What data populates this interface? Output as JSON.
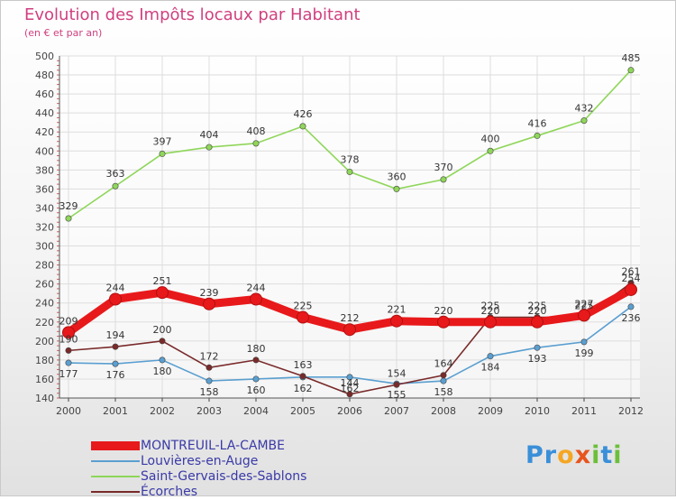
{
  "header": {
    "title": "Evolution des Impôts locaux par Habitant",
    "subtitle": "(en € et par an)"
  },
  "brand": {
    "chars": [
      {
        "ch": "P",
        "color": "#3a8fd8"
      },
      {
        "ch": "r",
        "color": "#3a8fd8"
      },
      {
        "ch": "o",
        "color": "#f5a623"
      },
      {
        "ch": "x",
        "color": "#e8541e"
      },
      {
        "ch": "i",
        "color": "#6cbf3a"
      },
      {
        "ch": "t",
        "color": "#3a8fd8"
      },
      {
        "ch": "i",
        "color": "#6cbf3a"
      }
    ]
  },
  "chart_data": {
    "type": "line",
    "title": "Evolution des Impôts locaux par Habitant",
    "subtitle": "(en € et par an)",
    "xlabel": "",
    "ylabel": "",
    "x": [
      "2000",
      "2001",
      "2002",
      "2003",
      "2004",
      "2005",
      "2006",
      "2007",
      "2008",
      "2009",
      "2010",
      "2011",
      "2012"
    ],
    "ylim": [
      140,
      500
    ],
    "yticks": [
      140,
      160,
      180,
      200,
      220,
      240,
      260,
      280,
      300,
      320,
      340,
      360,
      380,
      400,
      420,
      440,
      460,
      480,
      500
    ],
    "grid": true,
    "legend_position": "bottom-left",
    "series": [
      {
        "name": "MONTREUIL-LA-CAMBE",
        "color": "#e8191b",
        "values": [
          209,
          244,
          251,
          239,
          244,
          225,
          212,
          221,
          220,
          220,
          220,
          227,
          254
        ],
        "labels": [
          "209",
          "244",
          "251",
          "239",
          "244",
          "225",
          "212",
          "221",
          "220",
          "220",
          "220",
          "227",
          "254"
        ],
        "emphasis": true
      },
      {
        "name": "Louvières-en-Auge",
        "color": "#5a9fd0",
        "values": [
          177,
          176,
          180,
          158,
          160,
          162,
          162,
          155,
          158,
          184,
          193,
          199,
          236
        ],
        "labels": [
          "177",
          "176",
          "180",
          "158",
          "160",
          "162",
          "162",
          "155",
          "158",
          "184",
          "193",
          "199",
          "236"
        ]
      },
      {
        "name": "Saint-Gervais-des-Sablons",
        "color": "#8fd65a",
        "values": [
          329,
          363,
          397,
          404,
          408,
          426,
          378,
          360,
          370,
          400,
          416,
          432,
          485
        ],
        "labels": [
          "329",
          "363",
          "397",
          "404",
          "408",
          "426",
          "378",
          "360",
          "370",
          "400",
          "416",
          "432",
          "485"
        ]
      },
      {
        "name": "Écorches",
        "color": "#7a2a2a",
        "values": [
          190,
          194,
          200,
          172,
          180,
          163,
          144,
          154,
          164,
          225,
          225,
          225,
          261
        ],
        "labels": [
          "190",
          "194",
          "200",
          "172",
          "180",
          "163",
          "144",
          "154",
          "164",
          "225",
          "225",
          "225",
          "261"
        ]
      }
    ]
  }
}
